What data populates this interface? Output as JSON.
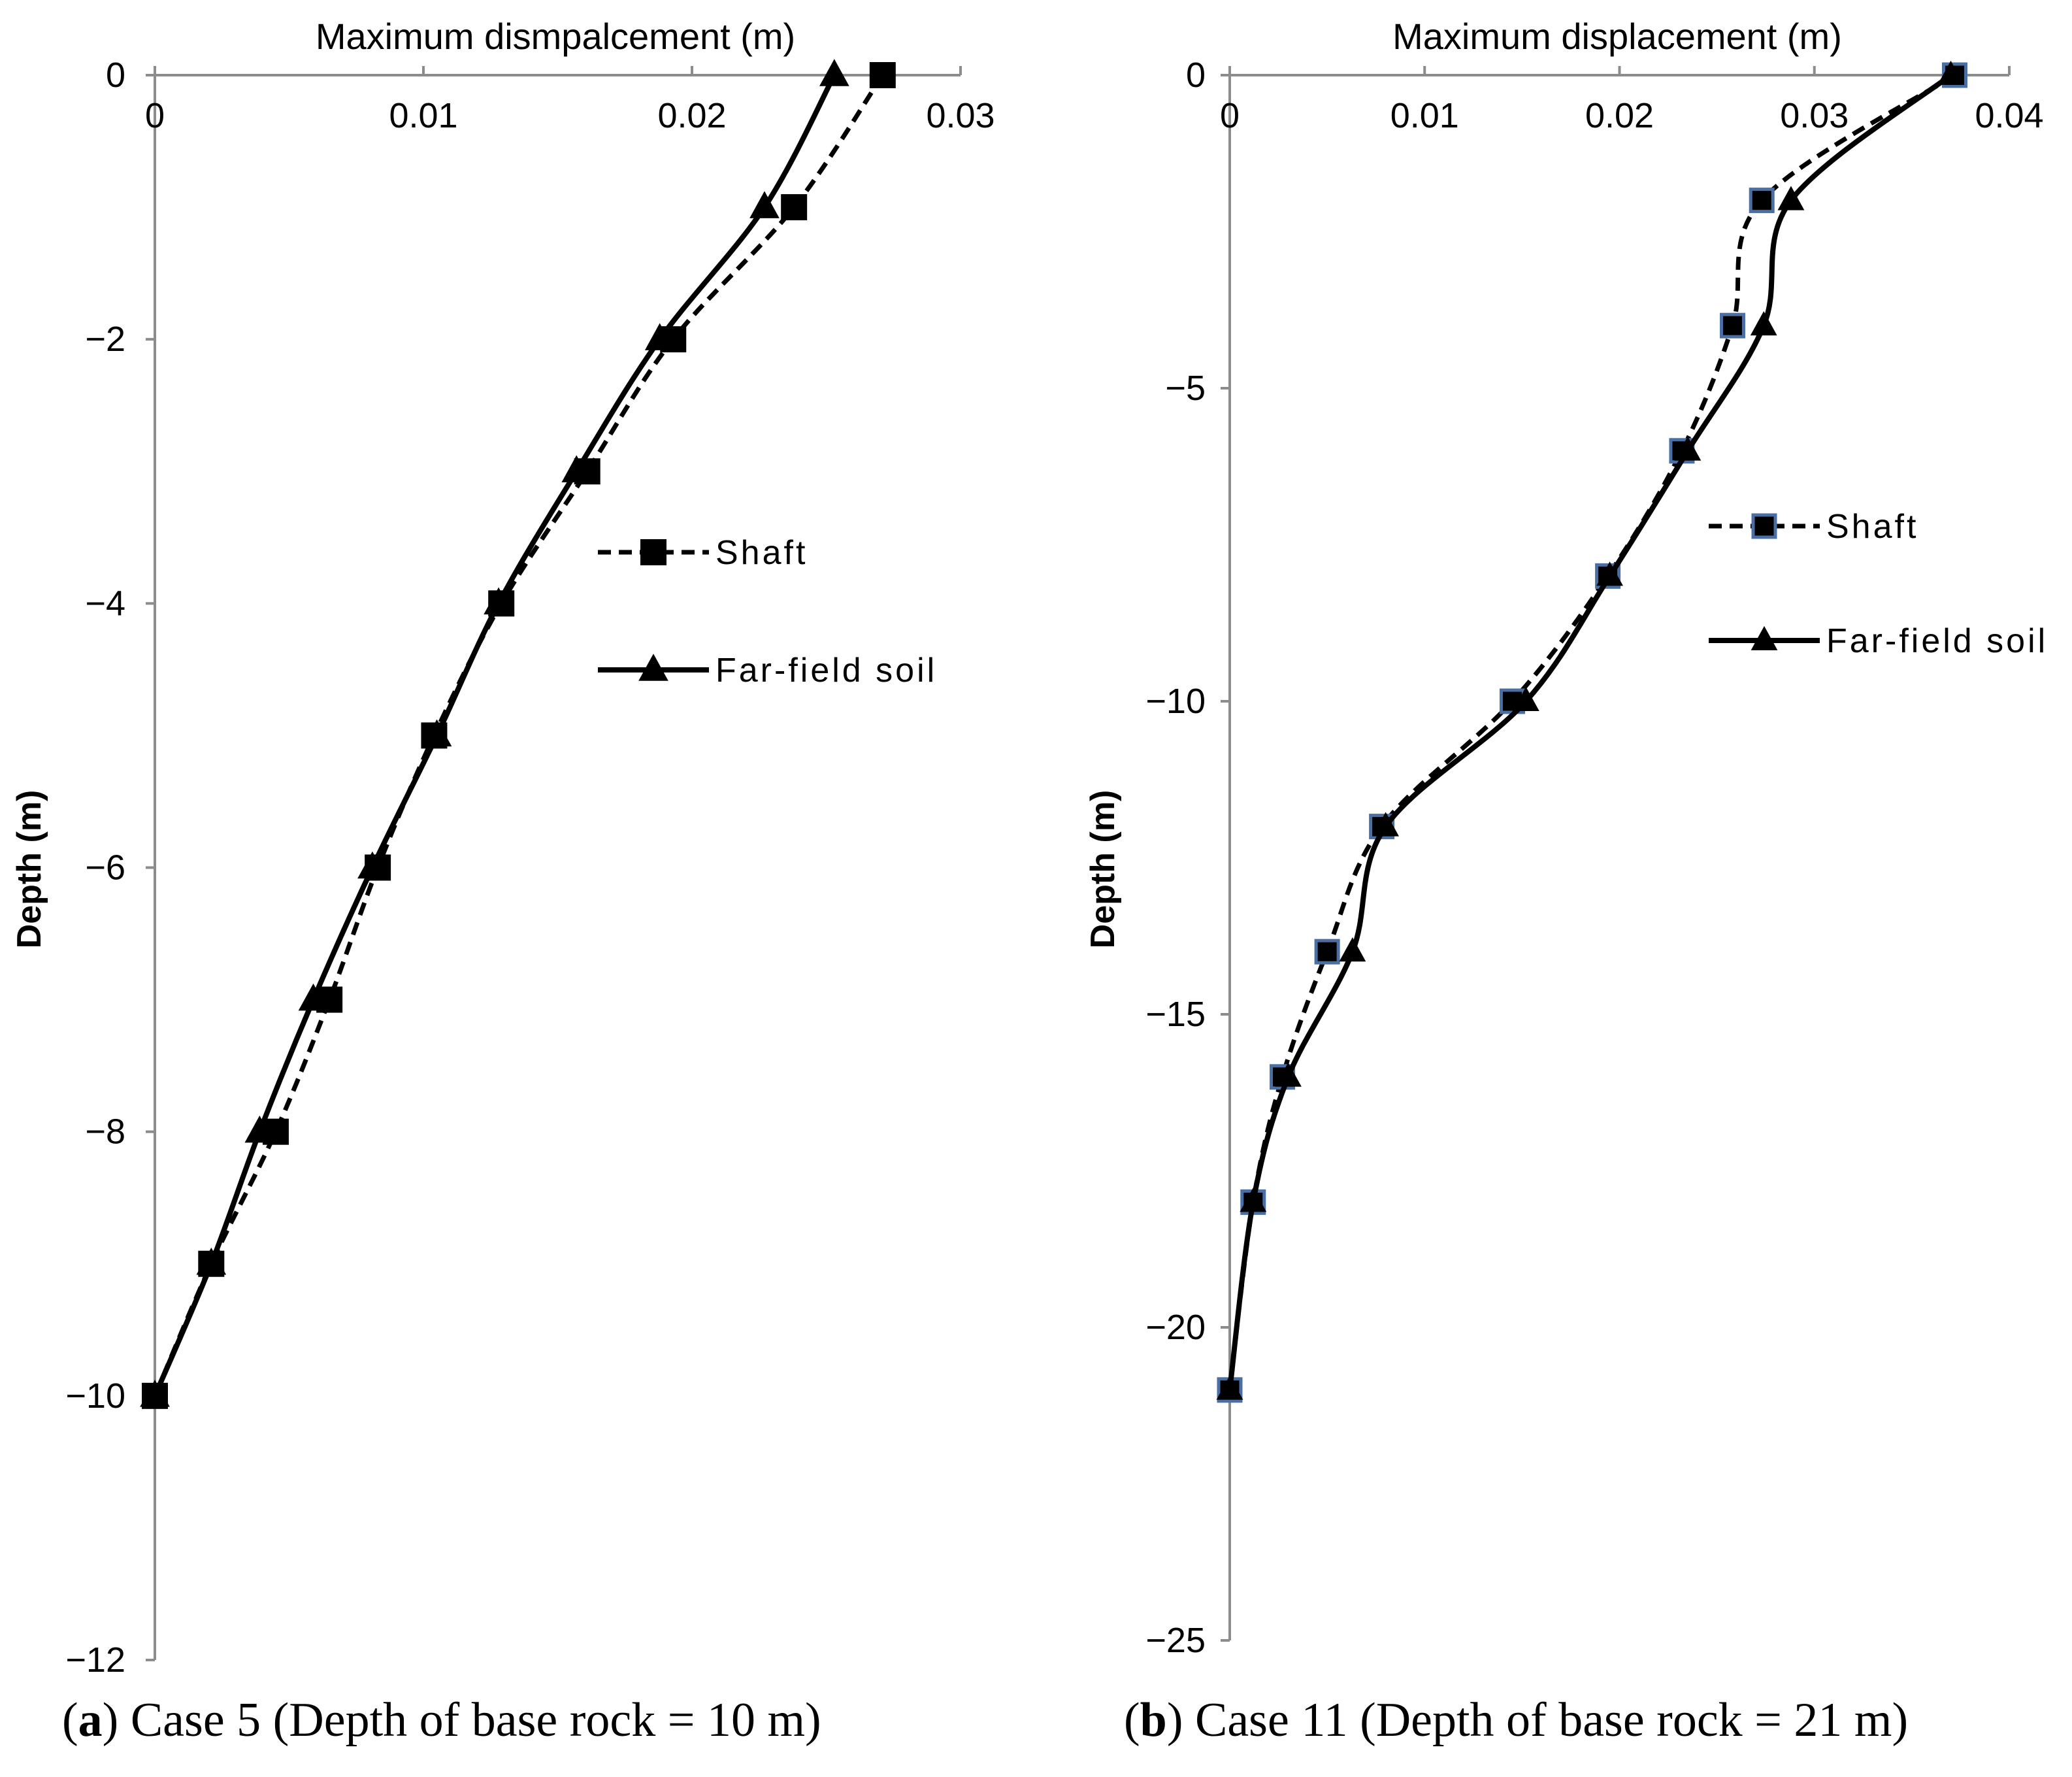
{
  "chart_data": [
    {
      "type": "line",
      "panel": "a",
      "title": "Maximum dismpalcement (m)",
      "xlabel": "Maximum dismpalcement (m)",
      "ylabel": "Depth (m)",
      "xlim": [
        0,
        0.03
      ],
      "ylim": [
        -12,
        0
      ],
      "xticks": [
        0,
        0.01,
        0.02,
        0.03
      ],
      "xtick_labels": [
        "0",
        "0.01",
        "0.02",
        "0.03"
      ],
      "yticks": [
        0,
        -2,
        -4,
        -6,
        -8,
        -10,
        -12
      ],
      "ytick_labels": [
        "0",
        "−2",
        "−4",
        "−6",
        "−8",
        "−10",
        "−12"
      ],
      "x_axis_position": "top",
      "grid": false,
      "legend": "right-middle",
      "series": [
        {
          "name": "Shaft",
          "style": "dashed",
          "marker": "square",
          "marker_edge": "#000000",
          "color": "#000000",
          "points": [
            [
              0.0271,
              0
            ],
            [
              0.0238,
              -1
            ],
            [
              0.0193,
              -2
            ],
            [
              0.0161,
              -3
            ],
            [
              0.0129,
              -4
            ],
            [
              0.0104,
              -5
            ],
            [
              0.0083,
              -6
            ],
            [
              0.0065,
              -7
            ],
            [
              0.0045,
              -8
            ],
            [
              0.0021,
              -9
            ],
            [
              0.0,
              -10
            ]
          ]
        },
        {
          "name": "Far-field soil",
          "style": "solid",
          "marker": "triangle",
          "color": "#000000",
          "points": [
            [
              0.0253,
              0
            ],
            [
              0.0227,
              -1
            ],
            [
              0.0188,
              -2
            ],
            [
              0.0157,
              -3
            ],
            [
              0.0128,
              -4
            ],
            [
              0.0105,
              -5
            ],
            [
              0.0081,
              -6
            ],
            [
              0.0059,
              -7
            ],
            [
              0.0039,
              -8
            ],
            [
              0.0021,
              -9
            ],
            [
              0.0,
              -10
            ]
          ]
        }
      ]
    },
    {
      "type": "line",
      "panel": "b",
      "title": "Maximum displacement (m)",
      "xlabel": "Maximum displacement (m)",
      "ylabel": "Depth (m)",
      "xlim": [
        0,
        0.04
      ],
      "ylim": [
        -25,
        0
      ],
      "xticks": [
        0,
        0.01,
        0.02,
        0.03,
        0.04
      ],
      "xtick_labels": [
        "0",
        "0.01",
        "0.02",
        "0.03",
        "0.04"
      ],
      "yticks": [
        0,
        -5,
        -10,
        -15,
        -20,
        -25
      ],
      "ytick_labels": [
        "0",
        "−5",
        "−10",
        "−15",
        "−20",
        "−25"
      ],
      "x_axis_position": "top",
      "grid": false,
      "legend": "right-middle",
      "series": [
        {
          "name": "Shaft",
          "style": "dashed",
          "marker": "square",
          "marker_edge": "#4a6fa5",
          "color": "#000000",
          "points": [
            [
              0.0372,
              0
            ],
            [
              0.0273,
              -2
            ],
            [
              0.0258,
              -4
            ],
            [
              0.0232,
              -6
            ],
            [
              0.0194,
              -8
            ],
            [
              0.0145,
              -10
            ],
            [
              0.0078,
              -12
            ],
            [
              0.005,
              -14
            ],
            [
              0.0027,
              -16
            ],
            [
              0.0012,
              -18
            ],
            [
              0.0,
              -21
            ]
          ]
        },
        {
          "name": "Far-field soil",
          "style": "solid",
          "marker": "triangle",
          "color": "#000000",
          "points": [
            [
              0.037,
              0
            ],
            [
              0.0288,
              -2
            ],
            [
              0.0274,
              -4
            ],
            [
              0.0235,
              -6
            ],
            [
              0.0195,
              -8
            ],
            [
              0.0152,
              -10
            ],
            [
              0.008,
              -12
            ],
            [
              0.0063,
              -14
            ],
            [
              0.003,
              -16
            ],
            [
              0.0012,
              -18
            ],
            [
              0.0,
              -21
            ]
          ]
        }
      ]
    }
  ],
  "captions": {
    "a_letter": "a",
    "a_text": " Case 5 (Depth of base rock = 10 m)",
    "b_letter": "b",
    "b_text": " Case 11 (Depth of base rock = 21 m)"
  }
}
